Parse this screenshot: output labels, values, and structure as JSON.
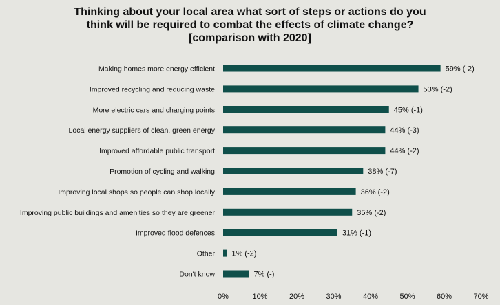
{
  "chart_data": {
    "type": "bar",
    "orientation": "horizontal",
    "title": [
      "Thinking about your local area what sort of steps or actions do you",
      "think will be required to combat the effects of climate change?",
      "[comparison with 2020]"
    ],
    "categories": [
      "Making homes more energy efficient",
      "Improved recycling and reducing waste",
      "More electric cars and charging points",
      "Local energy suppliers of clean, green energy",
      "Improved affordable public transport",
      "Promotion of cycling and walking",
      "Improving local shops so people can shop locally",
      "Improving public buildings and amenities so they are greener",
      "Improved flood defences",
      "Other",
      "Don't know"
    ],
    "values": [
      59,
      53,
      45,
      44,
      44,
      38,
      36,
      35,
      31,
      1,
      7
    ],
    "data_labels": [
      "59% (-2)",
      "53% (-2)",
      "45% (-1)",
      "44% (-3)",
      "44% (-2)",
      "38% (-7)",
      "36% (-2)",
      "35% (-2)",
      "31% (-1)",
      "1% (-2)",
      "7% (-)"
    ],
    "xlim": [
      0,
      70
    ],
    "xticks": [
      "0%",
      "10%",
      "20%",
      "30%",
      "40%",
      "50%",
      "60%",
      "70%"
    ],
    "grid": false,
    "legend": "none",
    "bar_color": "#0f4f4a",
    "background": "#e6e6e1"
  }
}
